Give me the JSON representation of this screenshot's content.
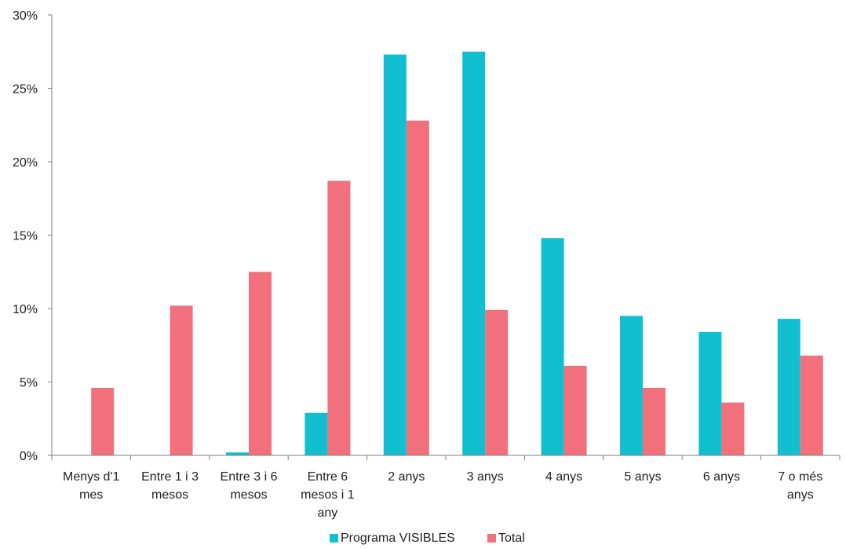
{
  "chart_data": {
    "type": "bar",
    "title": "",
    "xlabel": "",
    "ylabel": "",
    "ylim": [
      0,
      30
    ],
    "y_ticks": [
      "0%",
      "5%",
      "10%",
      "15%",
      "20%",
      "25%",
      "30%"
    ],
    "y_tick_values": [
      0,
      5,
      10,
      15,
      20,
      25,
      30
    ],
    "grid": false,
    "legend_position": "bottom",
    "categories": [
      "Menys d'1 mes",
      "Entre 1 i 3 mesos",
      "Entre 3 i 6 mesos",
      "Entre 6 mesos i 1 any",
      "2 anys",
      "3 anys",
      "4 anys",
      "5 anys",
      "6 anys",
      "7 o més anys"
    ],
    "category_lines": [
      [
        "Menys d'1",
        "mes"
      ],
      [
        "Entre 1 i 3",
        "mesos"
      ],
      [
        "Entre 3 i 6",
        "mesos"
      ],
      [
        "Entre 6",
        "mesos i 1",
        "any"
      ],
      [
        "2 anys"
      ],
      [
        "3 anys"
      ],
      [
        "4 anys"
      ],
      [
        "5 anys"
      ],
      [
        "6 anys"
      ],
      [
        "7 o més",
        "anys"
      ]
    ],
    "series": [
      {
        "name": "Programa VISIBLES",
        "color": "#12bfd0",
        "values": [
          0,
          0,
          0.2,
          2.9,
          27.3,
          27.5,
          14.8,
          9.5,
          8.4,
          9.3
        ]
      },
      {
        "name": "Total",
        "color": "#f2707c",
        "values": [
          4.6,
          10.2,
          12.5,
          18.7,
          22.8,
          9.9,
          6.1,
          4.6,
          3.6,
          6.8
        ]
      }
    ]
  }
}
